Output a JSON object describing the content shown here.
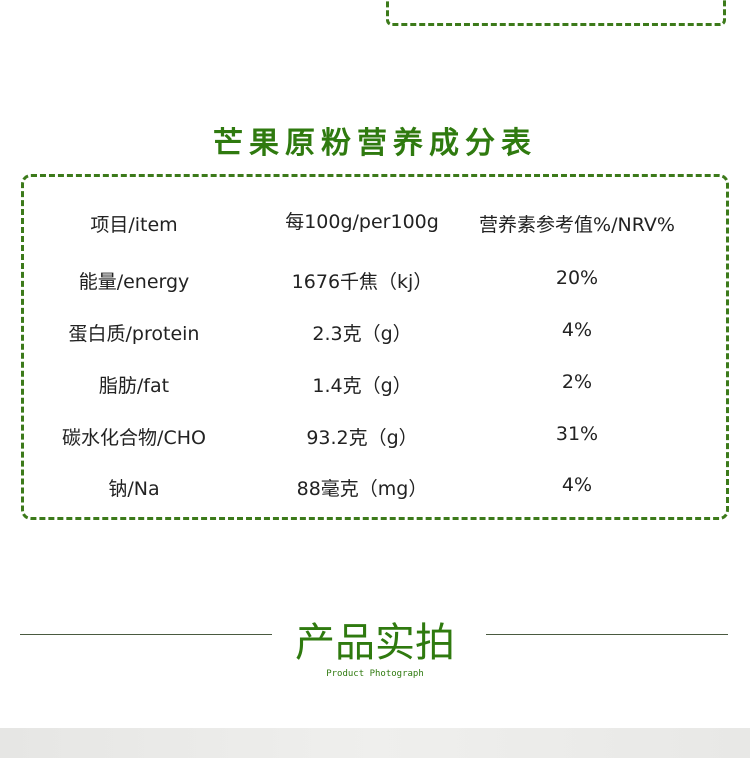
{
  "nutrition": {
    "title": "芒果原粉营养成分表",
    "headers": [
      "项目/item",
      "每100g/per100g",
      "营养素参考值%/NRV%"
    ],
    "rows": [
      [
        "能量/energy",
        "1676千焦（kj）",
        "20%"
      ],
      [
        "蛋白质/protein",
        "2.3克（g）",
        "4%"
      ],
      [
        "脂肪/fat",
        "1.4克（g）",
        "2%"
      ],
      [
        "碳水化合物/CHO",
        "93.2克（g）",
        "31%"
      ],
      [
        "钠/Na",
        "88毫克（mg）",
        "4%"
      ]
    ]
  },
  "section": {
    "title": "产品实拍",
    "subtitle": "Product Photograph"
  },
  "colors": {
    "accent": "#2f7a0f",
    "border": "#3c7a1a"
  }
}
